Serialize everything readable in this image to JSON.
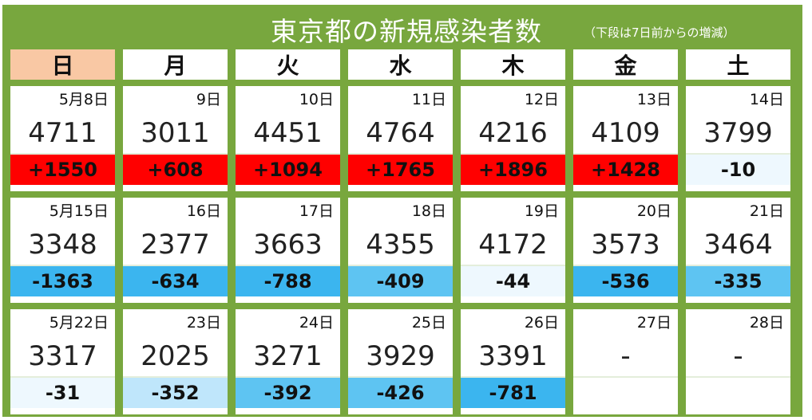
{
  "title": "東京都の新規感染者数",
  "subtitle": "（下段は7日前からの増減）",
  "colors": {
    "frame": "#78a73e",
    "sunday_header": "#f9c8a4",
    "increase": "#ff0000",
    "decrease_strong": "#3bb5ef",
    "decrease_mid": "#5ec4f2",
    "decrease_light": "#bfe6fb",
    "decrease_faint": "#eef8fe"
  },
  "weekdays": [
    "日",
    "月",
    "火",
    "水",
    "木",
    "金",
    "土"
  ],
  "weeks": [
    {
      "days": [
        {
          "date": "5月8日",
          "count": "4711",
          "delta": "+1550",
          "tone": "increase"
        },
        {
          "date": "9日",
          "count": "3011",
          "delta": "+608",
          "tone": "increase"
        },
        {
          "date": "10日",
          "count": "4451",
          "delta": "+1094",
          "tone": "increase"
        },
        {
          "date": "11日",
          "count": "4764",
          "delta": "+1765",
          "tone": "increase"
        },
        {
          "date": "12日",
          "count": "4216",
          "delta": "+1896",
          "tone": "increase"
        },
        {
          "date": "13日",
          "count": "4109",
          "delta": "+1428",
          "tone": "increase"
        },
        {
          "date": "14日",
          "count": "3799",
          "delta": "-10",
          "tone": "decrease_faint"
        }
      ]
    },
    {
      "days": [
        {
          "date": "5月15日",
          "count": "3348",
          "delta": "-1363",
          "tone": "decrease_strong"
        },
        {
          "date": "16日",
          "count": "2377",
          "delta": "-634",
          "tone": "decrease_strong"
        },
        {
          "date": "17日",
          "count": "3663",
          "delta": "-788",
          "tone": "decrease_strong"
        },
        {
          "date": "18日",
          "count": "4355",
          "delta": "-409",
          "tone": "decrease_mid"
        },
        {
          "date": "19日",
          "count": "4172",
          "delta": "-44",
          "tone": "decrease_faint"
        },
        {
          "date": "20日",
          "count": "3573",
          "delta": "-536",
          "tone": "decrease_strong"
        },
        {
          "date": "21日",
          "count": "3464",
          "delta": "-335",
          "tone": "decrease_mid"
        }
      ]
    },
    {
      "days": [
        {
          "date": "5月22日",
          "count": "3317",
          "delta": "-31",
          "tone": "decrease_faint"
        },
        {
          "date": "23日",
          "count": "2025",
          "delta": "-352",
          "tone": "decrease_light"
        },
        {
          "date": "24日",
          "count": "3271",
          "delta": "-392",
          "tone": "decrease_mid"
        },
        {
          "date": "25日",
          "count": "3929",
          "delta": "-426",
          "tone": "decrease_mid"
        },
        {
          "date": "26日",
          "count": "3391",
          "delta": "-781",
          "tone": "decrease_strong"
        },
        {
          "date": "27日",
          "count": "-",
          "delta": "",
          "tone": "none"
        },
        {
          "date": "28日",
          "count": "-",
          "delta": "",
          "tone": "none"
        }
      ]
    }
  ]
}
